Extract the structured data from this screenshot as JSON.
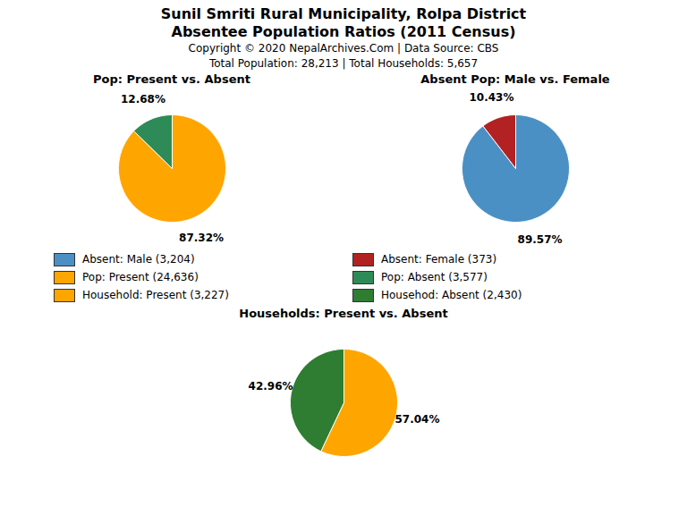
{
  "title": "Sunil Smriti Rural Municipality, Rolpa District",
  "subtitle": "Absentee Population Ratios (2011 Census)",
  "annotations": [
    "Copyright © 2020 NepalArchives.Com | Data Source: CBS",
    "Total Population: 28,213 | Total Households: 5,657"
  ],
  "chart_data": [
    {
      "type": "pie",
      "title": "Pop: Present vs. Absent",
      "categories": [
        "Pop: Present (24,636)",
        "Pop: Absent (3,577)"
      ],
      "values": [
        87.32,
        12.68
      ],
      "value_labels": [
        "87.32%",
        "12.68%"
      ],
      "data_labels": true,
      "colors": [
        "#FFA500",
        "#2E8B57"
      ],
      "legend": "center"
    },
    {
      "type": "pie",
      "title": "Absent Pop: Male vs. Female",
      "categories": [
        "Absent: Male (3,204)",
        "Absent: Female (373)"
      ],
      "values": [
        89.57,
        10.43
      ],
      "value_labels": [
        "89.57%",
        "10.43%"
      ],
      "data_labels": true,
      "colors": [
        "#4A90C4",
        "#B22222"
      ],
      "legend": "center"
    },
    {
      "type": "pie",
      "title": "Households: Present vs. Absent",
      "categories": [
        "Household: Present (3,227)",
        "Househod: Absent (2,430)"
      ],
      "values": [
        57.04,
        42.96
      ],
      "value_labels": [
        "57.04%",
        "42.96%"
      ],
      "data_labels": true,
      "colors": [
        "#FFA500",
        "#2E7D32"
      ],
      "legend": "center"
    }
  ]
}
